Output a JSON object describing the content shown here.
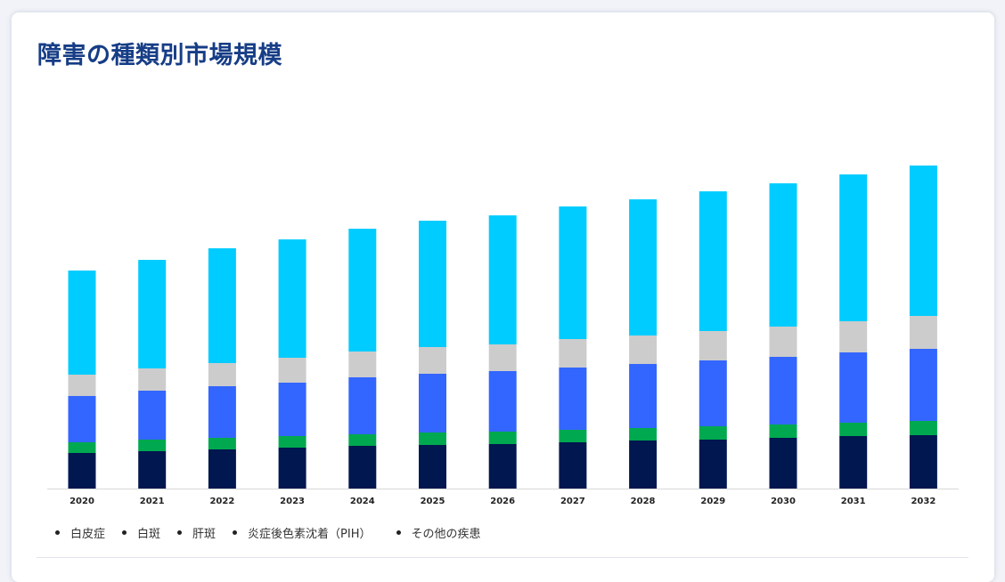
{
  "title": "障害の種類別市場規模",
  "legend": [
    {
      "label": "白皮症"
    },
    {
      "label": "白斑"
    },
    {
      "label": "肝斑"
    },
    {
      "label": "炎症後色素沈着（PIH）"
    },
    {
      "label": "その他の疾患"
    }
  ],
  "colors": {
    "title": "#163d86",
    "other": "#01174f",
    "pih": "#00a94f",
    "melasma": "#3366ff",
    "vitiligo": "#cccccc",
    "albinism": "#00ccff"
  },
  "chart_data": {
    "type": "bar",
    "stacked": true,
    "categories": [
      "2020",
      "2021",
      "2022",
      "2023",
      "2024",
      "2025",
      "2026",
      "2027",
      "2028",
      "2029",
      "2030",
      "2031",
      "2032"
    ],
    "series": [
      {
        "key": "other",
        "color": "#01174f",
        "values": [
          40,
          42,
          44,
          46,
          48,
          49,
          50,
          52,
          54,
          55,
          57,
          59,
          60
        ]
      },
      {
        "key": "pih",
        "color": "#00a94f",
        "values": [
          12,
          13,
          13,
          13,
          13,
          14,
          14,
          14,
          14,
          15,
          15,
          15,
          16
        ]
      },
      {
        "key": "melasma",
        "color": "#3366ff",
        "values": [
          52,
          55,
          58,
          60,
          64,
          66,
          68,
          70,
          72,
          74,
          76,
          79,
          81
        ]
      },
      {
        "key": "vitiligo",
        "color": "#cccccc",
        "values": [
          24,
          25,
          26,
          28,
          29,
          30,
          30,
          32,
          32,
          33,
          34,
          35,
          37
        ]
      },
      {
        "key": "albinism",
        "color": "#00ccff",
        "values": [
          117,
          122,
          129,
          133,
          138,
          142,
          145,
          149,
          153,
          157,
          161,
          165,
          169
        ]
      }
    ],
    "ylim": [
      0,
      370
    ],
    "grid": false,
    "legend_position": "bottom-left"
  }
}
